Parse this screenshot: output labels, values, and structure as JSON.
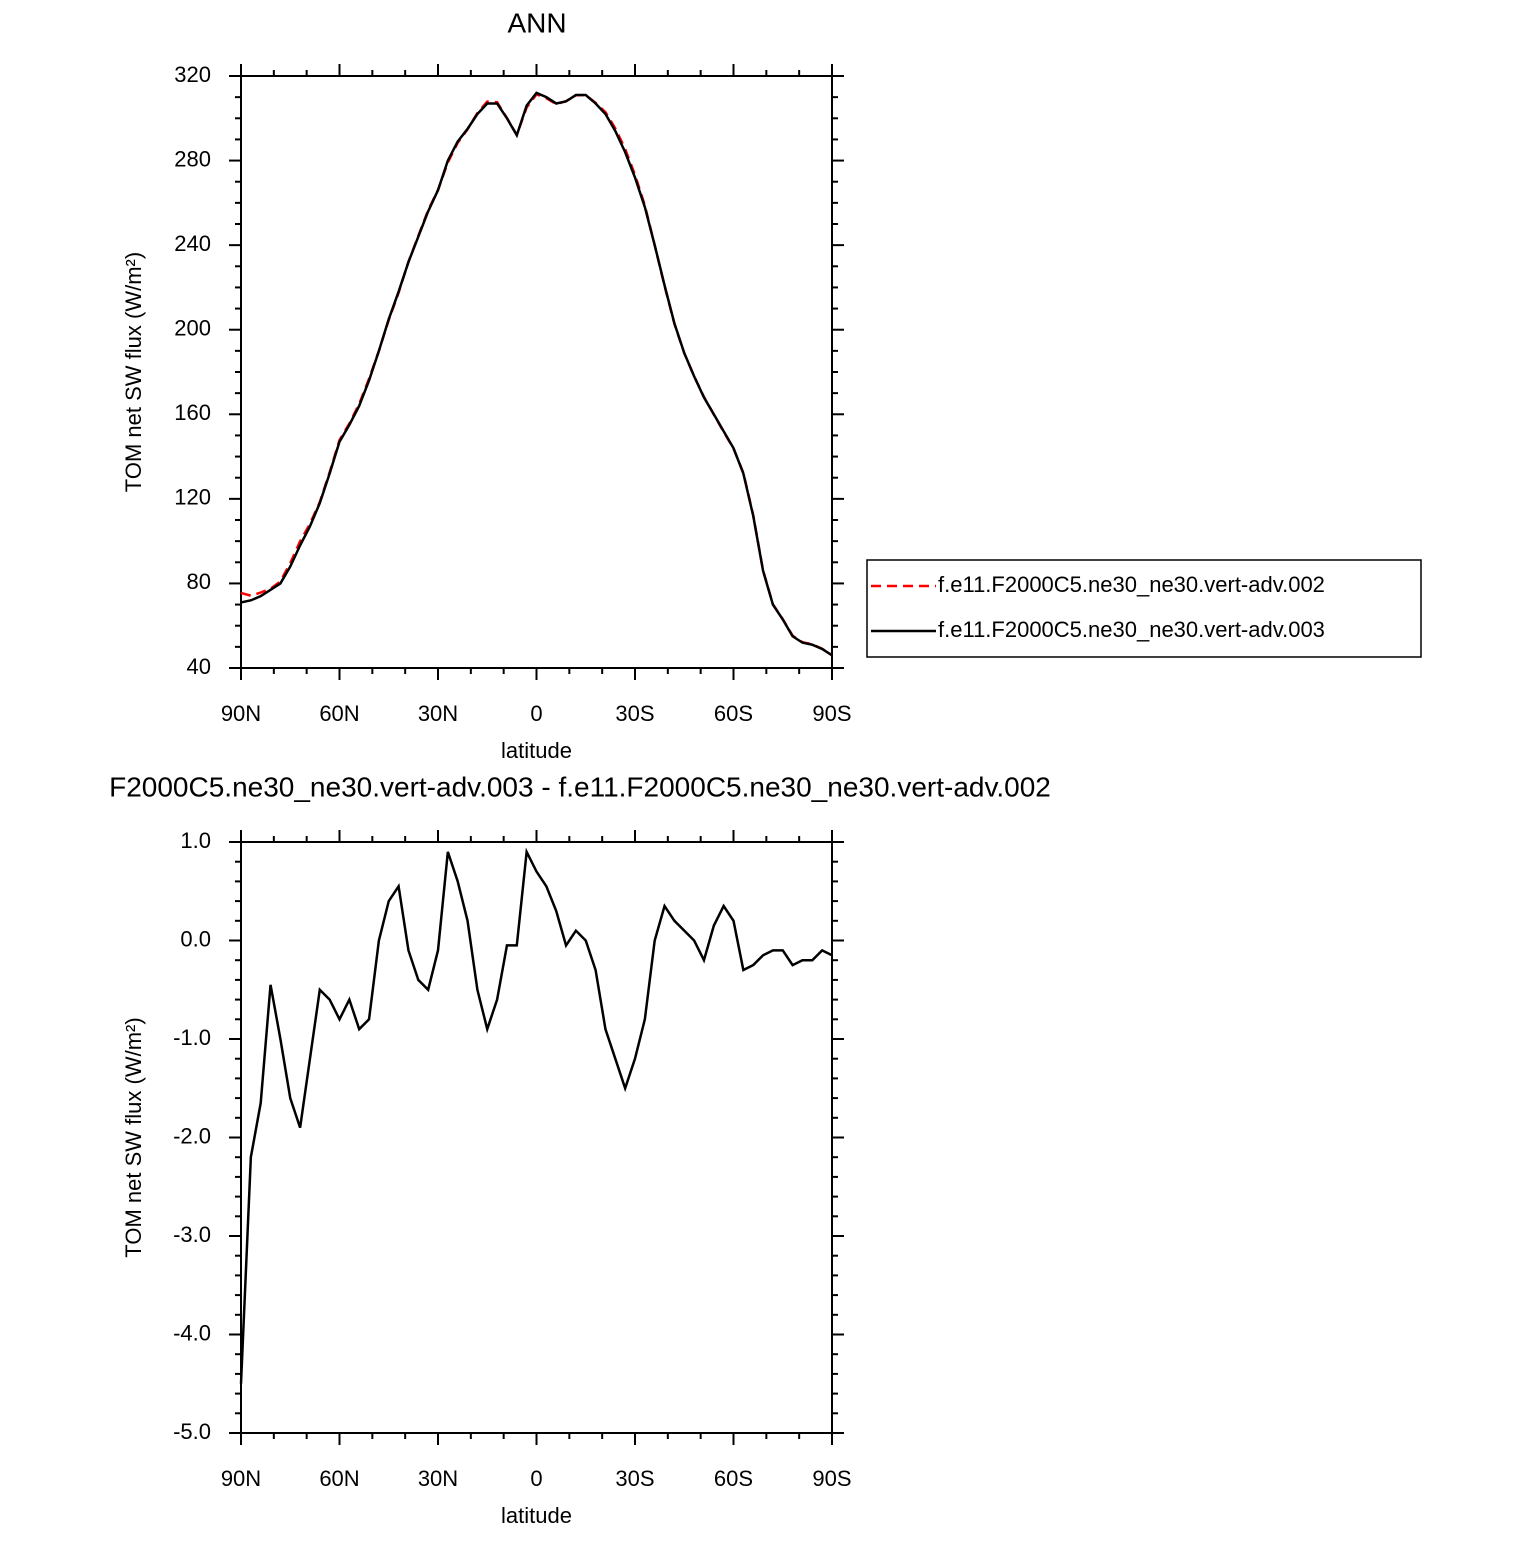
{
  "chart_data": [
    {
      "type": "line",
      "title": "ANN",
      "x_label": "latitude",
      "y_label": "TOM net SW flux (W/m²)",
      "x": [
        90,
        87,
        84,
        81,
        78,
        75,
        72,
        69,
        66,
        63,
        60,
        57,
        54,
        51,
        48,
        45,
        42,
        39,
        36,
        33,
        30,
        27,
        24,
        21,
        18,
        15,
        12,
        9,
        6,
        3,
        0,
        -3,
        -6,
        -9,
        -12,
        -15,
        -18,
        -21,
        -24,
        -27,
        -30,
        -33,
        -36,
        -39,
        -42,
        -45,
        -48,
        -51,
        -54,
        -57,
        -60,
        -63,
        -66,
        -69,
        -72,
        -75,
        -78,
        -81,
        -84,
        -87,
        -90
      ],
      "series": [
        {
          "name": "f.e11.F2000C5.ne30_ne30.vert-adv.002",
          "color": "#ff0000",
          "line_style": "dashed",
          "values": [
            75.5,
            74.2,
            75.7,
            77.5,
            81,
            89.6,
            99.9,
            108.2,
            118.5,
            132.6,
            147.8,
            155.6,
            164.9,
            176.8,
            190,
            204.6,
            217.5,
            232.1,
            244.4,
            256.5,
            266.1,
            279.1,
            288.4,
            294.8,
            302.5,
            307.9,
            307.6,
            300.1,
            292.1,
            305.1,
            311.3,
            309.5,
            306.7,
            308.1,
            310.9,
            311,
            307.3,
            302.9,
            295.2,
            285.5,
            273.2,
            258.8,
            240,
            220.7,
            202.8,
            188.9,
            178,
            168.2,
            159.9,
            151.7,
            143.8,
            132.3,
            112.3,
            86.2,
            70.1,
            63.1,
            55.3,
            52.2,
            51.2,
            49.1,
            46.2
          ]
        },
        {
          "name": "f.e11.F2000C5.ne30_ne30.vert-adv.003",
          "color": "#000000",
          "line_style": "solid",
          "values": [
            71,
            72,
            74,
            77,
            80,
            88,
            98,
            107,
            118,
            132,
            147,
            155,
            164,
            176,
            190,
            205,
            218,
            232,
            244,
            256,
            266,
            280,
            289,
            295,
            302,
            307,
            307,
            300,
            292,
            306,
            312,
            310,
            307,
            308,
            311,
            311,
            307,
            302,
            294,
            284,
            272,
            258,
            240,
            221,
            203,
            189,
            178,
            168,
            160,
            152,
            144,
            132,
            112,
            86,
            70,
            63,
            55,
            52,
            51,
            49,
            46
          ]
        }
      ],
      "xlim": [
        90,
        -90
      ],
      "xticks": [
        {
          "value": 90,
          "label": "90N"
        },
        {
          "value": 60,
          "label": "60N"
        },
        {
          "value": 30,
          "label": "30N"
        },
        0,
        {
          "value": -30,
          "label": "30S"
        },
        {
          "value": -60,
          "label": "60S"
        },
        {
          "value": -90,
          "label": "90S"
        }
      ],
      "ylim": [
        40,
        320
      ],
      "yticks": [
        40,
        80,
        120,
        160,
        200,
        240,
        280,
        320
      ],
      "legend": "right"
    },
    {
      "type": "line",
      "title": "F2000C5.ne30_ne30.vert-adv.003 - f.e11.F2000C5.ne30_ne30.vert-adv.002",
      "x_label": "latitude",
      "y_label": "TOM net SW flux (W/m²)",
      "x": [
        90,
        87,
        84,
        81,
        78,
        75,
        72,
        69,
        66,
        63,
        60,
        57,
        54,
        51,
        48,
        45,
        42,
        39,
        36,
        33,
        30,
        27,
        24,
        21,
        18,
        15,
        12,
        9,
        6,
        3,
        0,
        -3,
        -6,
        -9,
        -12,
        -15,
        -18,
        -21,
        -24,
        -27,
        -30,
        -33,
        -36,
        -39,
        -42,
        -45,
        -48,
        -51,
        -54,
        -57,
        -60,
        -63,
        -66,
        -69,
        -72,
        -75,
        -78,
        -81,
        -84,
        -87,
        -90
      ],
      "values": [
        -4.5,
        -2.2,
        -1.65,
        -0.45,
        -1,
        -1.6,
        -1.9,
        -1.2,
        -0.5,
        -0.6,
        -0.8,
        -0.6,
        -0.9,
        -0.8,
        0,
        0.4,
        0.55,
        -0.1,
        -0.4,
        -0.5,
        -0.1,
        0.9,
        0.6,
        0.2,
        -0.5,
        -0.9,
        -0.6,
        -0.05,
        -0.05,
        0.9,
        0.7,
        0.55,
        0.3,
        -0.05,
        0.1,
        0,
        -0.3,
        -0.9,
        -1.2,
        -1.5,
        -1.2,
        -0.8,
        0,
        0.35,
        0.2,
        0.1,
        0,
        -0.2,
        0.15,
        0.35,
        0.2,
        -0.3,
        -0.25,
        -0.15,
        -0.1,
        -0.1,
        -0.25,
        -0.2,
        -0.2,
        -0.1,
        -0.15
      ],
      "color": "#000000",
      "xlim": [
        90,
        -90
      ],
      "xticks": [
        {
          "value": 90,
          "label": "90N"
        },
        {
          "value": 60,
          "label": "60N"
        },
        {
          "value": 30,
          "label": "30N"
        },
        0,
        {
          "value": -30,
          "label": "30S"
        },
        {
          "value": -60,
          "label": "60S"
        },
        {
          "value": -90,
          "label": "90S"
        }
      ],
      "ylim": [
        -5,
        1
      ],
      "yticks": [
        {
          "value": -5,
          "label": "-5.0"
        },
        {
          "value": -4,
          "label": "-4.0"
        },
        {
          "value": -3,
          "label": "-3.0"
        },
        {
          "value": -2,
          "label": "-2.0"
        },
        {
          "value": -1,
          "label": "-1.0"
        },
        {
          "value": 0,
          "label": "0.0"
        },
        {
          "value": 1,
          "label": "1.0"
        }
      ]
    }
  ]
}
